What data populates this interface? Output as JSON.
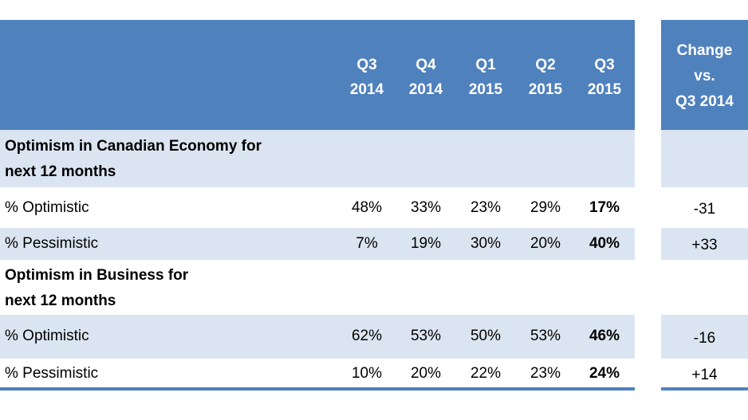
{
  "chart_data": {
    "type": "table",
    "columns": [
      "Q3 2014",
      "Q4 2014",
      "Q1 2015",
      "Q2 2015",
      "Q3 2015"
    ],
    "change_header": "Change vs. Q3 2014",
    "units": "%",
    "sections": [
      {
        "title": "Optimism in Canadian Economy for next 12 months",
        "rows": [
          {
            "label": "% Optimistic",
            "values": [
              48,
              33,
              23,
              29,
              17
            ],
            "change": -31
          },
          {
            "label": "% Pessimistic",
            "values": [
              7,
              19,
              30,
              20,
              40
            ],
            "change": 33
          }
        ]
      },
      {
        "title": "Optimism in Business for next 12 months",
        "rows": [
          {
            "label": "% Optimistic",
            "values": [
              62,
              53,
              50,
              53,
              46
            ],
            "change": -16
          },
          {
            "label": "% Pessimistic",
            "values": [
              10,
              20,
              22,
              23,
              24
            ],
            "change": 14
          }
        ]
      }
    ]
  },
  "header": {
    "columns": [
      {
        "line1": "Q3",
        "line2": "2014"
      },
      {
        "line1": "Q4",
        "line2": "2014"
      },
      {
        "line1": "Q1",
        "line2": "2015"
      },
      {
        "line1": "Q2",
        "line2": "2015"
      },
      {
        "line1": "Q3",
        "line2": "2015"
      }
    ],
    "change_lines": [
      "Change",
      "vs.",
      "Q3 2014"
    ]
  },
  "sections": [
    {
      "title_lines": [
        "Optimism in Canadian Economy for",
        "next 12 months"
      ],
      "rows": [
        {
          "label": "% Optimistic",
          "cells": [
            "48%",
            "33%",
            "23%",
            "29%",
            "17%"
          ],
          "change": "-31"
        },
        {
          "label": "% Pessimistic",
          "cells": [
            "7%",
            "19%",
            "30%",
            "20%",
            "40%"
          ],
          "change": "+33"
        }
      ]
    },
    {
      "title_lines": [
        "Optimism in Business for",
        "next 12 months"
      ],
      "rows": [
        {
          "label": "% Optimistic",
          "cells": [
            "62%",
            "53%",
            "50%",
            "53%",
            "46%"
          ],
          "change": "-16"
        },
        {
          "label": "% Pessimistic",
          "cells": [
            "10%",
            "20%",
            "22%",
            "23%",
            "24%"
          ],
          "change": "+14"
        }
      ]
    }
  ],
  "colors": {
    "header": "#4f81bd",
    "band": "#dbe5f1"
  }
}
